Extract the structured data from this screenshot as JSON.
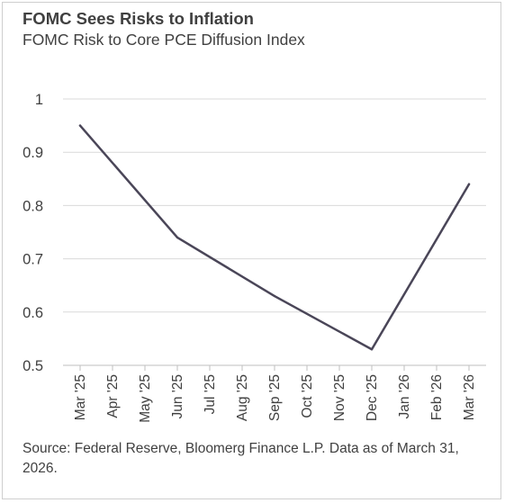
{
  "chart_data": {
    "type": "line",
    "title": "FOMC Sees Risks to Inflation",
    "subtitle": "FOMC Risk to Core PCE Diffusion Index",
    "categories": [
      "Mar '25",
      "Apr '25",
      "May '25",
      "Jun '25",
      "Jul '25",
      "Aug '25",
      "Sep '25",
      "Oct '25",
      "Nov '25",
      "Dec '25",
      "Jan '26",
      "Feb '26",
      "Mar '26"
    ],
    "series": [
      {
        "points": [
          {
            "x": "Mar '25",
            "y": 0.95
          },
          {
            "x": "Jun '25",
            "y": 0.74
          },
          {
            "x": "Sep '25",
            "y": 0.63
          },
          {
            "x": "Dec '25",
            "y": 0.53
          },
          {
            "x": "Mar '26",
            "y": 0.84
          }
        ],
        "color": "#4a4658"
      }
    ],
    "ylim": [
      0.5,
      1.0
    ],
    "yticks": [
      0.5,
      0.6,
      0.7,
      0.8,
      0.9,
      1
    ],
    "ytick_labels": [
      "0.5",
      "0.6",
      "0.7",
      "0.8",
      "0.9",
      "1"
    ],
    "grid": true,
    "gridline_color": "#d9d9d9",
    "source": "Source: Federal Reserve, Bloomerg Finance L.P. Data as of March 31, 2026."
  }
}
